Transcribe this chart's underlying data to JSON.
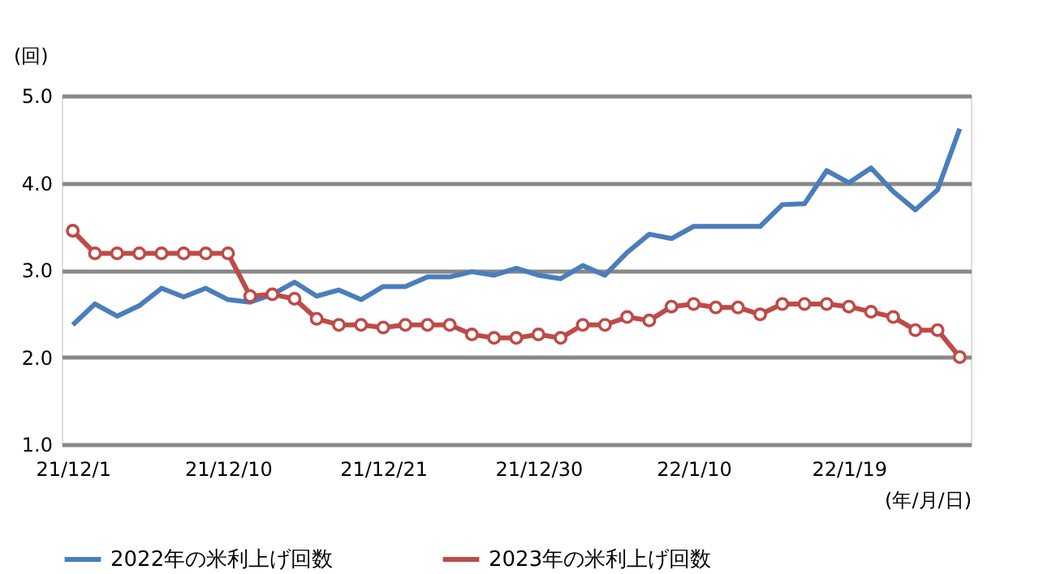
{
  "chart_data": {
    "type": "line",
    "xlabel": "(年/月/日)",
    "ylabel": "(回)",
    "categories": [
      "21/12/1",
      null,
      null,
      null,
      null,
      null,
      null,
      "21/12/10",
      null,
      null,
      null,
      null,
      null,
      null,
      "21/12/21",
      null,
      null,
      null,
      null,
      null,
      null,
      "21/12/30",
      null,
      null,
      null,
      null,
      null,
      null,
      "22/1/10",
      null,
      null,
      null,
      null,
      null,
      null,
      "22/1/19",
      null,
      null,
      null,
      null,
      null
    ],
    "series": [
      {
        "name": "2022年の米利上げ回数",
        "color": "#4a7ebb",
        "marker": "none",
        "values": [
          2.37,
          2.61,
          2.47,
          2.59,
          2.79,
          2.69,
          2.79,
          2.66,
          2.63,
          2.72,
          2.86,
          2.7,
          2.77,
          2.66,
          2.81,
          2.81,
          2.92,
          2.92,
          2.98,
          2.94,
          3.02,
          2.94,
          2.9,
          3.05,
          2.94,
          3.2,
          3.41,
          3.36,
          3.5,
          3.5,
          3.5,
          3.5,
          3.75,
          3.76,
          4.14,
          4.0,
          4.17,
          3.9,
          3.69,
          3.92,
          4.62
        ]
      },
      {
        "name": "2023年の米利上げ回数",
        "color": "#be4b48",
        "marker": "circle",
        "values": [
          3.45,
          3.19,
          3.19,
          3.19,
          3.19,
          3.19,
          3.19,
          3.19,
          2.7,
          2.72,
          2.67,
          2.44,
          2.37,
          2.37,
          2.34,
          2.37,
          2.37,
          2.37,
          2.26,
          2.22,
          2.22,
          2.26,
          2.22,
          2.37,
          2.37,
          2.46,
          2.42,
          2.58,
          2.61,
          2.57,
          2.57,
          2.49,
          2.61,
          2.61,
          2.61,
          2.58,
          2.52,
          2.46,
          2.31,
          2.31,
          2.0
        ]
      }
    ],
    "ylim": [
      1.0,
      5.0
    ],
    "yticks": [
      {
        "value": 1.0,
        "label": "1.0"
      },
      {
        "value": 2.0,
        "label": "2.0"
      },
      {
        "value": 3.0,
        "label": "3.0"
      },
      {
        "value": 4.0,
        "label": "4.0"
      },
      {
        "value": 5.0,
        "label": "5.0"
      }
    ],
    "grid": "y",
    "legend": "bottom"
  }
}
